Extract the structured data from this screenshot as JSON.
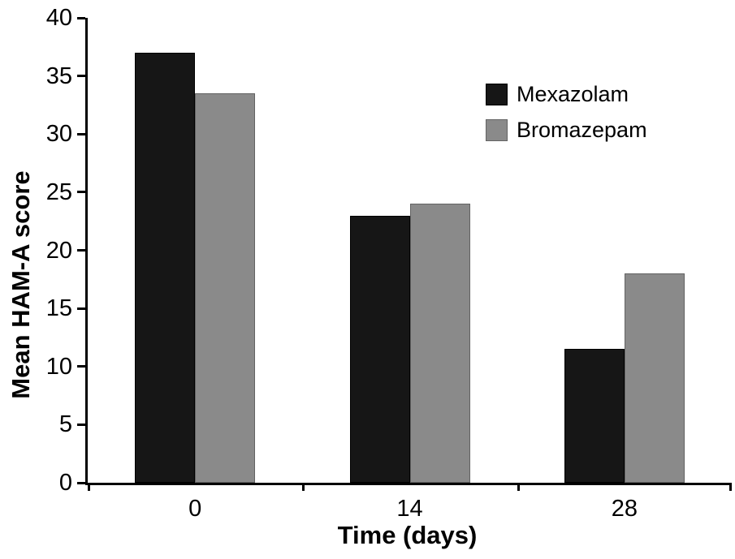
{
  "chart_data": {
    "type": "bar",
    "title": "",
    "xlabel": "Time (days)",
    "ylabel": "Mean HAM-A score",
    "categories": [
      "0",
      "14",
      "28"
    ],
    "series": [
      {
        "name": "Mexazolam",
        "values": [
          37,
          23,
          11.5
        ],
        "color": "#161616",
        "border_color": "#000000"
      },
      {
        "name": "Bromazepam",
        "values": [
          33.5,
          24,
          18
        ],
        "color": "#8a8a8a",
        "border_color": "#636363"
      }
    ],
    "ylim": [
      0,
      40
    ],
    "ytick_step": 5,
    "grid": false,
    "legend_position": "inside-top-right",
    "axis_color": "#000000",
    "background_color": "#ffffff"
  }
}
